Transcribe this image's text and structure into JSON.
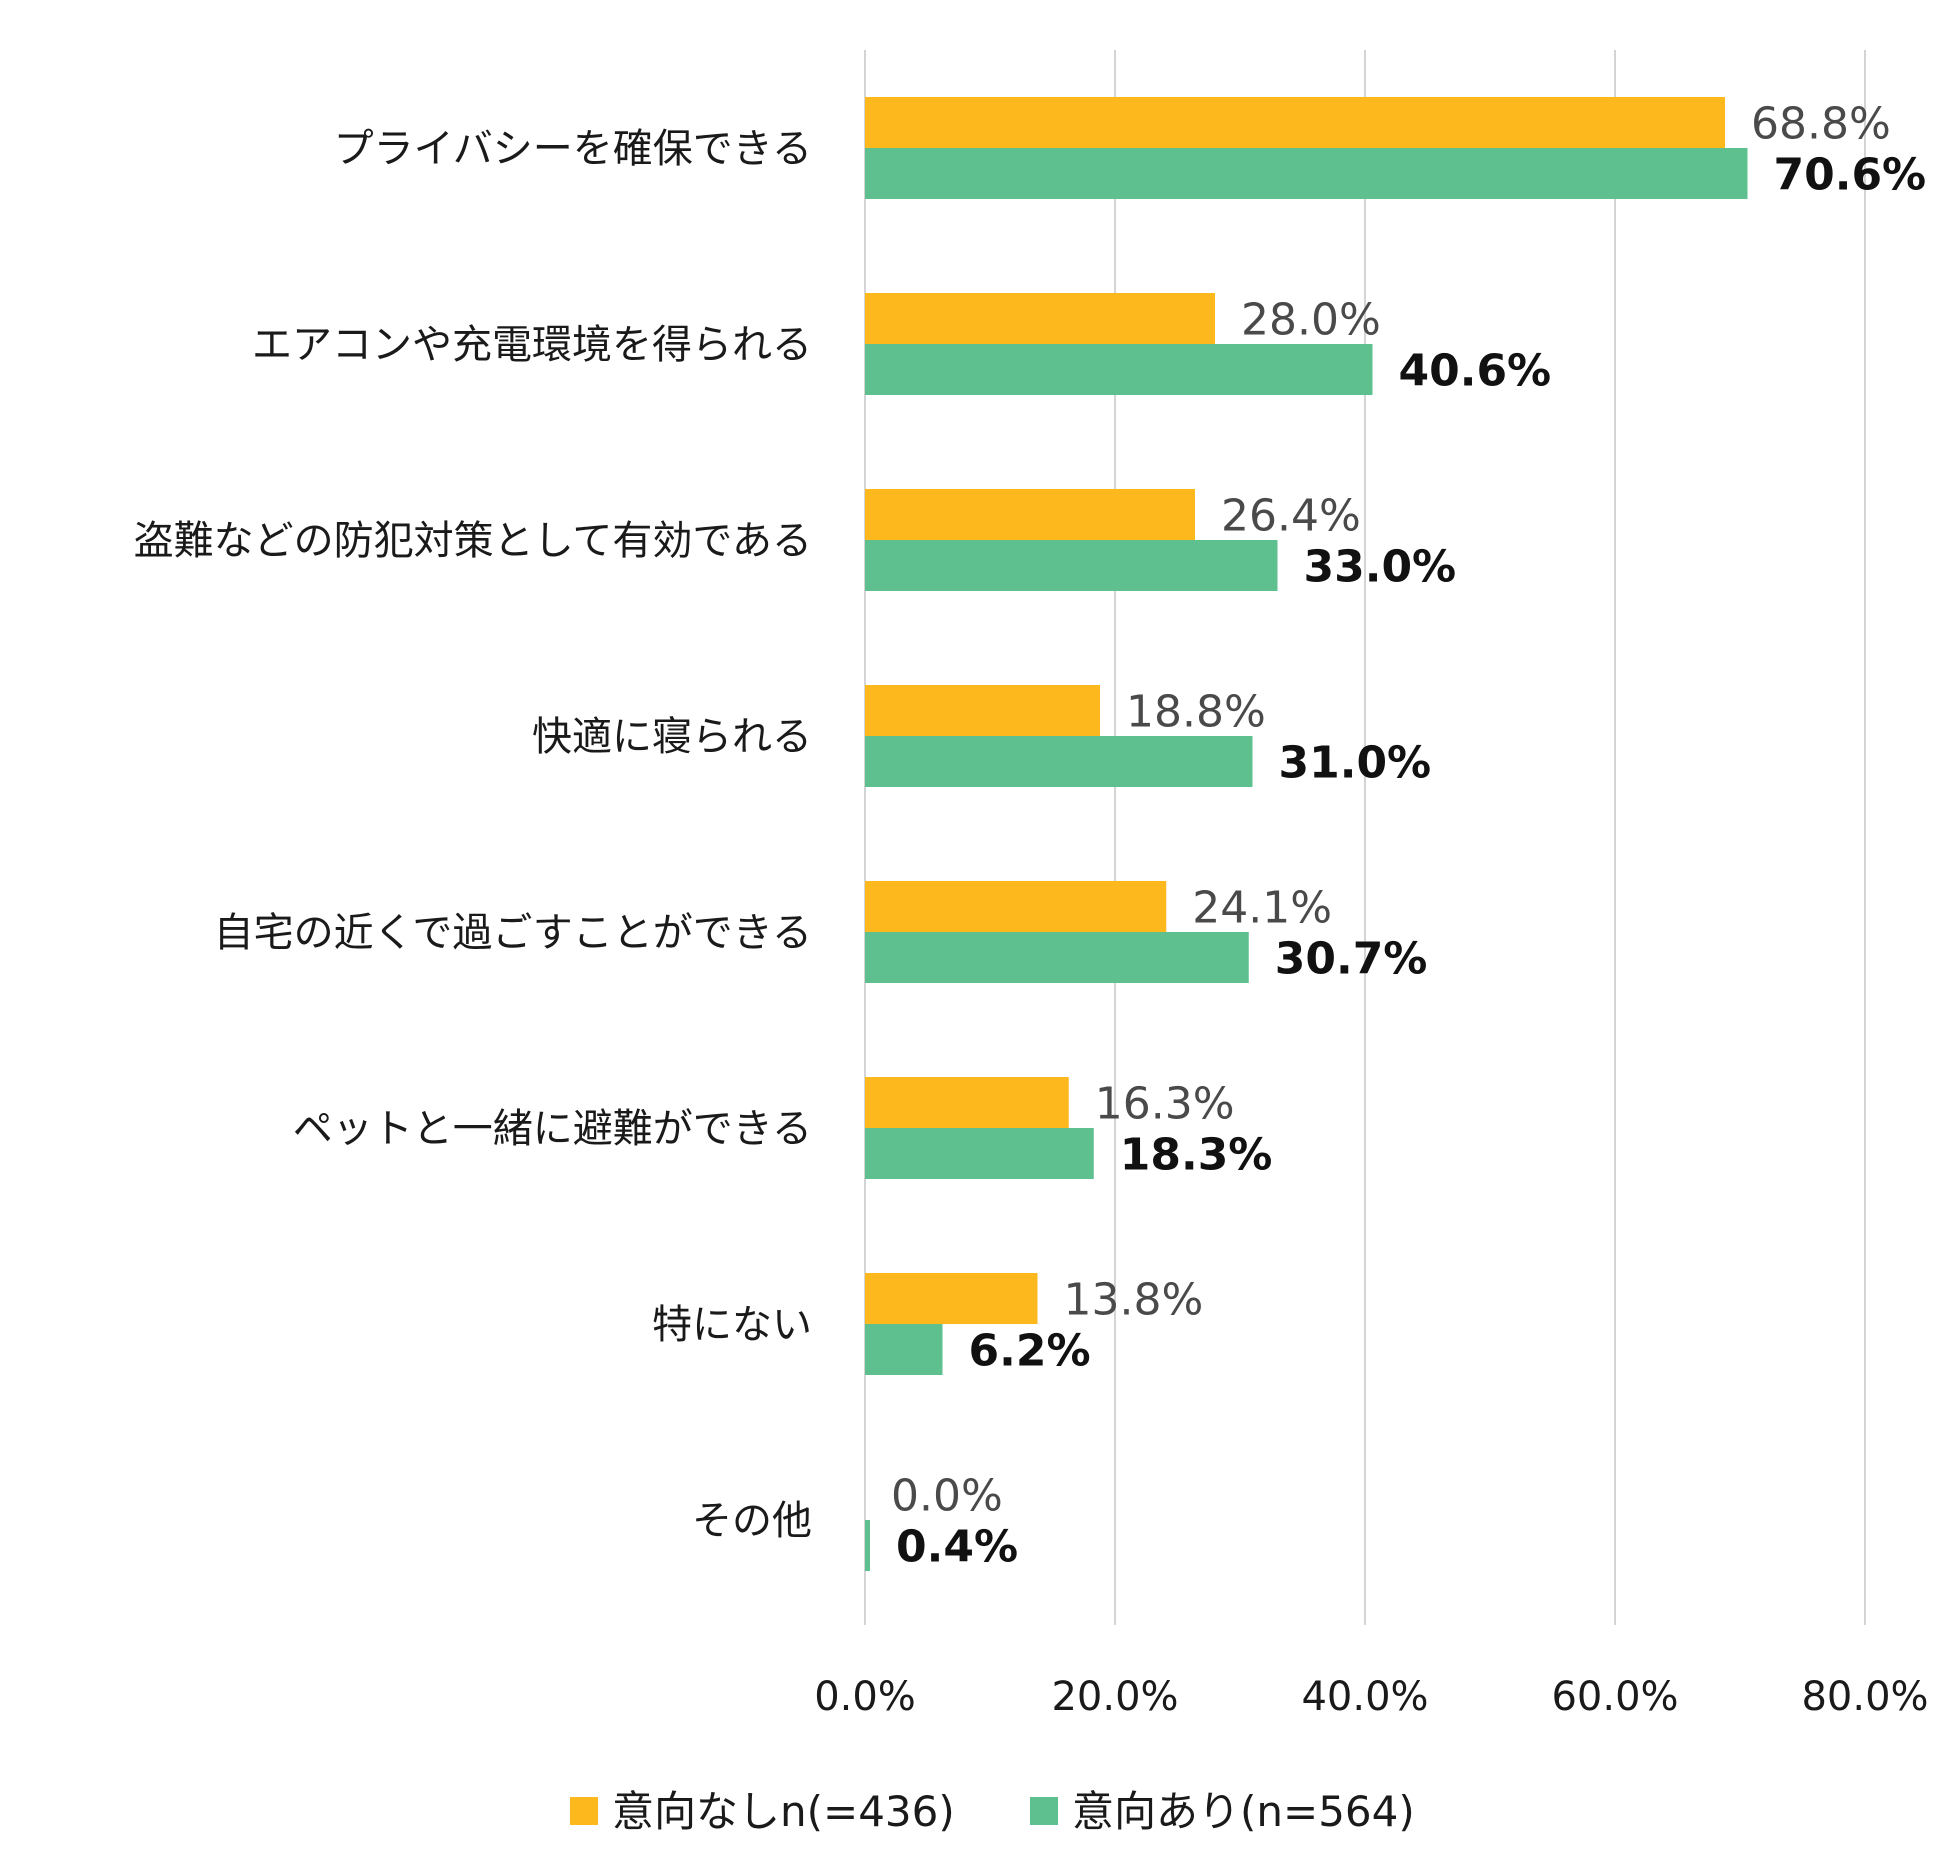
{
  "chart_data": {
    "type": "bar",
    "orientation": "horizontal",
    "categories": [
      "プライバシーを確保できる",
      "エアコンや充電環境を得られる",
      "盗難などの防犯対策として有効である",
      "快適に寝られる",
      "自宅の近くで過ごすことができる",
      "ペットと一緒に避難ができる",
      "特にない",
      "その他"
    ],
    "series": [
      {
        "name": "意向なしn(=436)",
        "color": "#FDB81E",
        "values": [
          68.8,
          28.0,
          26.4,
          18.8,
          24.1,
          16.3,
          13.8,
          0.0
        ],
        "labels": [
          "68.8%",
          "28.0%",
          "26.4%",
          "18.8%",
          "24.1%",
          "16.3%",
          "13.8%",
          "0.0%"
        ]
      },
      {
        "name": "意向あり(n=564)",
        "color": "#5EBF8F",
        "values": [
          70.6,
          40.6,
          33.0,
          31.0,
          30.7,
          18.3,
          6.2,
          0.4
        ],
        "labels": [
          "70.6%",
          "40.6%",
          "33.0%",
          "31.0%",
          "30.7%",
          "18.3%",
          "6.2%",
          "0.4%"
        ]
      }
    ],
    "xlim": [
      0,
      80
    ],
    "xticks": [
      "0.0%",
      "20.0%",
      "40.0%",
      "60.0%",
      "80.0%"
    ],
    "grid": true,
    "legend_position": "bottom"
  }
}
